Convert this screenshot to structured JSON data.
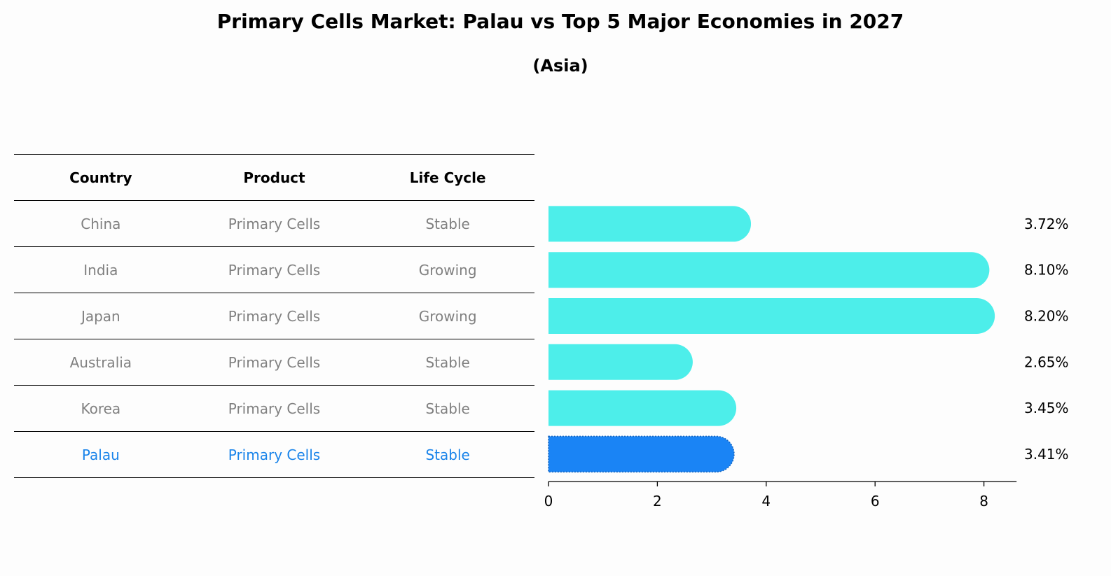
{
  "title": "Primary Cells Market: Palau vs Top 5 Major Economies in 2027",
  "subtitle": "(Asia)",
  "table": {
    "headers": [
      "Country",
      "Product",
      "Life Cycle"
    ],
    "rows": [
      [
        "China",
        "Primary Cells",
        "Stable"
      ],
      [
        "India",
        "Primary Cells",
        "Growing"
      ],
      [
        "Japan",
        "Primary Cells",
        "Growing"
      ],
      [
        "Australia",
        "Primary Cells",
        "Stable"
      ],
      [
        "Korea",
        "Primary Cells",
        "Stable"
      ],
      [
        "Palau",
        "Primary Cells",
        "Stable"
      ]
    ],
    "highlight_row": 5
  },
  "chart_data": {
    "type": "bar",
    "orientation": "horizontal",
    "categories": [
      "China",
      "India",
      "Japan",
      "Australia",
      "Korea",
      "Palau"
    ],
    "values": [
      3.72,
      8.1,
      8.2,
      2.65,
      3.45,
      3.41
    ],
    "value_labels": [
      "3.72%",
      "8.10%",
      "8.20%",
      "2.65%",
      "3.45%",
      "3.41%"
    ],
    "highlight": "Palau",
    "xlim": [
      0,
      8.6
    ],
    "xticks": [
      0,
      2,
      4,
      6,
      8
    ],
    "xlabel": "",
    "ylabel": "",
    "colors": {
      "default": "#4deeea",
      "highlight": "#1a84f5"
    }
  }
}
